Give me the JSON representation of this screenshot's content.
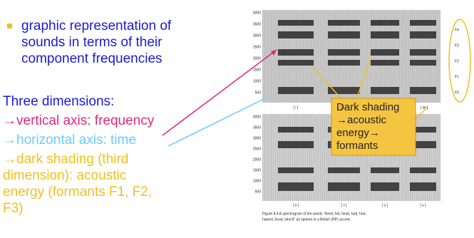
{
  "bullet": {
    "lines": [
      "graphic representation of",
      "sounds in terms of their",
      "component frequencies"
    ]
  },
  "dimensions": {
    "heading": "Three dimensions:",
    "vertical": "→vertical axis: frequency",
    "horizontal": "→horizontal axis: time",
    "shading": [
      "→dark shading (third",
      "dimension): acoustic",
      "energy (formants F1, F2,",
      "F3)"
    ]
  },
  "callout": {
    "lines": [
      "Dark shading",
      "→acoustic",
      "energy→",
      "formants"
    ]
  },
  "spectrogram": {
    "yaxis": [
      "4000",
      "3500",
      "3000",
      "2500",
      "2000",
      "1500",
      "1000",
      "500"
    ],
    "formant_labels": [
      "F4",
      "F3",
      "F2",
      "F1",
      "F0"
    ],
    "top_vowels": [
      "[ i ]",
      "[ I ]",
      "[ æ ]"
    ],
    "bottom_vowels": [
      "[ ɑ ]",
      "[ ɔ ]",
      "[ ʊ ]",
      "[ u ]"
    ],
    "caption": [
      "Figure 8.6  A spectrogram of the words \"heed, hid, head, had, hod,",
      "hawed, hood, who'd\" as spoken in a British (RP) accent."
    ]
  }
}
